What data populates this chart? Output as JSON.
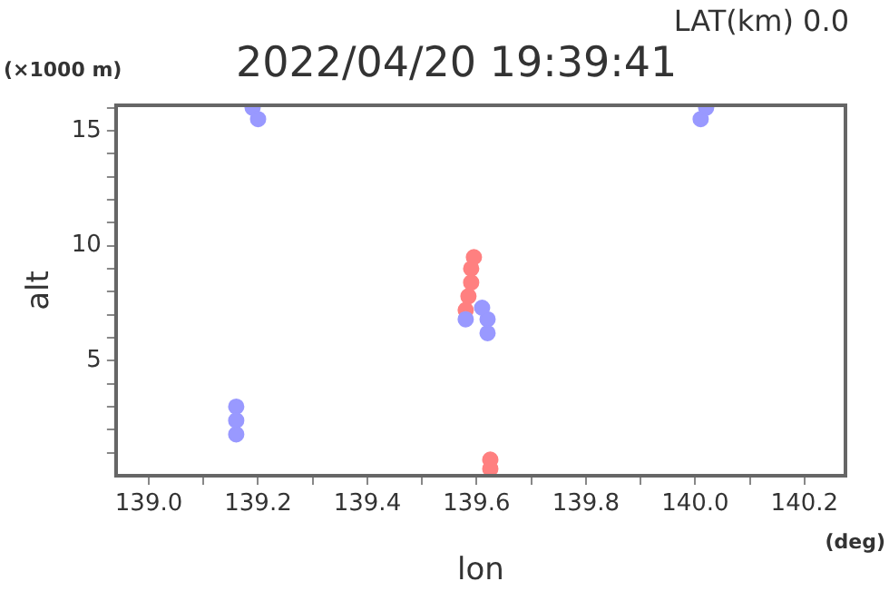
{
  "chart_data": {
    "type": "scatter",
    "title": "2022/04/20 19:39:41",
    "xlabel": "lon",
    "ylabel": "alt",
    "annotations": [
      "LAT(km) 0.0",
      "(×1000 m)",
      "(deg)"
    ],
    "series": [
      {
        "color": "#9999ff",
        "x": [
          139.16,
          139.16,
          139.16,
          139.19,
          139.2,
          140.01,
          140.02,
          139.58,
          139.61,
          139.62,
          139.62
        ],
        "values": [
          1.8,
          2.4,
          3.0,
          16.0,
          15.5,
          15.5,
          16.0,
          6.8,
          7.3,
          6.8,
          6.2
        ]
      },
      {
        "color": "#ff8080",
        "x": [
          139.58,
          139.585,
          139.59,
          139.59,
          139.595,
          139.625,
          139.625
        ],
        "values": [
          7.2,
          7.8,
          8.4,
          9.0,
          9.5,
          0.3,
          0.7
        ]
      }
    ],
    "marker": "circle",
    "xlim": [
      138.94,
      140.275
    ],
    "ylim": [
      0,
      16.1
    ],
    "xticks": [
      {
        "value": 139,
        "label": "139.0"
      },
      {
        "value": 139.1,
        "label": null
      },
      {
        "value": 139.2,
        "label": "139.2"
      },
      {
        "value": 139.3,
        "label": null
      },
      {
        "value": 139.4,
        "label": "139.4"
      },
      {
        "value": 139.5,
        "label": null
      },
      {
        "value": 139.6,
        "label": "139.6"
      },
      {
        "value": 139.7,
        "label": null
      },
      {
        "value": 139.8,
        "label": "139.8"
      },
      {
        "value": 139.9,
        "label": null
      },
      {
        "value": 140,
        "label": "140.0"
      },
      {
        "value": 140.1,
        "label": null
      },
      {
        "value": 140.2,
        "label": "140.2"
      }
    ],
    "yticks": [
      {
        "value": 1,
        "label": null
      },
      {
        "value": 2,
        "label": null
      },
      {
        "value": 3,
        "label": null
      },
      {
        "value": 4,
        "label": null
      },
      5,
      {
        "value": 6,
        "label": null
      },
      {
        "value": 7,
        "label": null
      },
      {
        "value": 8,
        "label": null
      },
      {
        "value": 9,
        "label": null
      },
      10,
      {
        "value": 11,
        "label": null
      },
      {
        "value": 12,
        "label": null
      },
      {
        "value": 13,
        "label": null
      },
      {
        "value": 14,
        "label": null
      },
      15,
      {
        "value": 16,
        "label": null
      }
    ],
    "grid": false,
    "legend": false
  }
}
